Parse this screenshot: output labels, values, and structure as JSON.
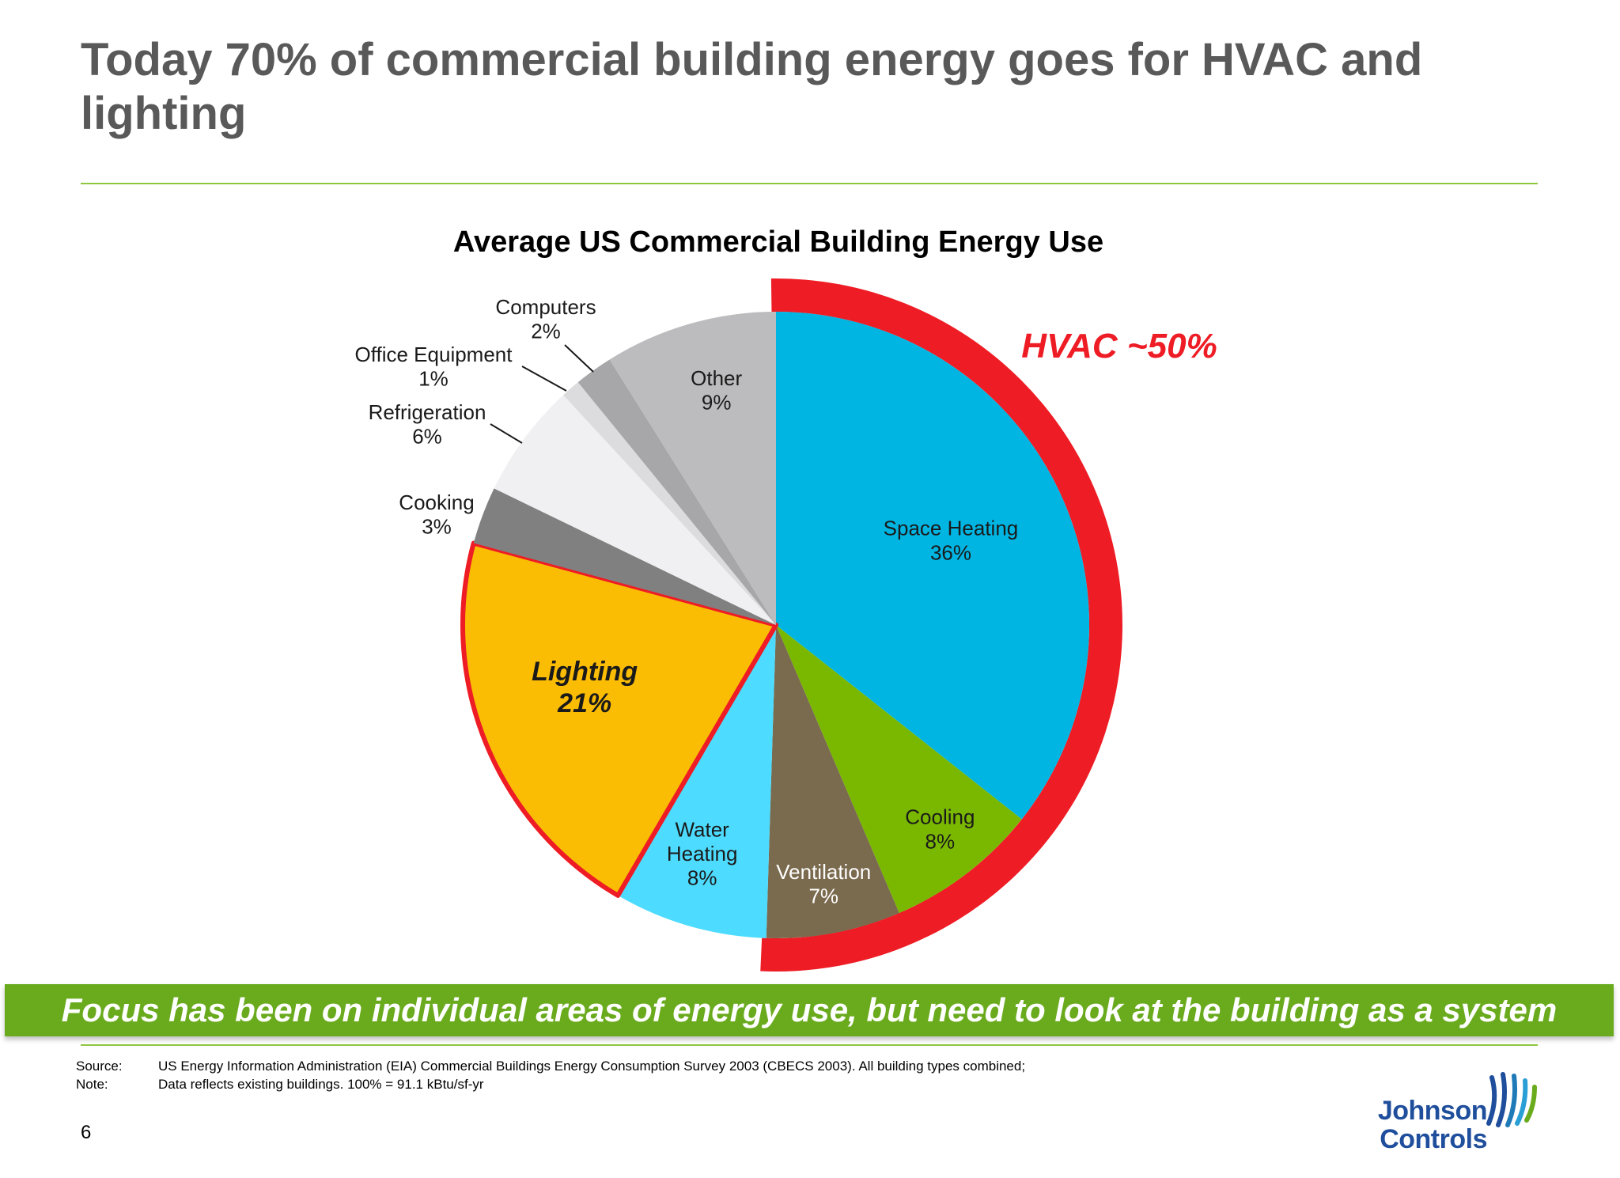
{
  "slide": {
    "title": "Today 70% of commercial building energy goes for HVAC and lighting",
    "banner": "Focus has been on individual areas of energy use, but need to look at the building as a system",
    "page_number": "6",
    "notes": [
      {
        "label": "Source:",
        "text": "US Energy Information Administration (EIA) Commercial Buildings Energy Consumption Survey 2003 (CBECS 2003).  All building types combined;"
      },
      {
        "label": "Note:",
        "text": "Data reflects existing buildings.  100% = 91.1 kBtu/sf-yr"
      }
    ],
    "logo": {
      "line1": "Johnson",
      "line2": "Controls",
      "icon": "johnson-controls-logo-icon"
    },
    "colors": {
      "accent_green": "#8dc63f",
      "banner_green": "#6aab1e",
      "highlight_red": "#ee1c25"
    }
  },
  "chart_data": {
    "type": "pie",
    "title": "Average US Commercial Building Energy Use",
    "unit": "%",
    "slices": [
      {
        "label": "Space Heating",
        "value": 36,
        "value_label": "36%",
        "color": "#00b5e2",
        "group": "HVAC"
      },
      {
        "label": "Cooling",
        "value": 8,
        "value_label": "8%",
        "color": "#7ab800",
        "group": "HVAC"
      },
      {
        "label": "Ventilation",
        "value": 7,
        "value_label": "7%",
        "color": "#7a6a4e",
        "group": "HVAC"
      },
      {
        "label": "Water Heating",
        "value": 8,
        "value_label": "8%",
        "color": "#4ddcff"
      },
      {
        "label": "Lighting",
        "value": 21,
        "value_label": "21%",
        "color": "#fbbc04",
        "highlight": true
      },
      {
        "label": "Cooking",
        "value": 3,
        "value_label": "3%",
        "color": "#808080"
      },
      {
        "label": "Refrigeration",
        "value": 6,
        "value_label": "6%",
        "color": "#f0f0f2"
      },
      {
        "label": "Office Equipment",
        "value": 1,
        "value_label": "1%",
        "color": "#dcdcde"
      },
      {
        "label": "Computers",
        "value": 2,
        "value_label": "2%",
        "color": "#a7a7a9"
      },
      {
        "label": "Other",
        "value": 9,
        "value_label": "9%",
        "color": "#bcbcbe"
      }
    ],
    "annotation": {
      "text": "HVAC ~50%",
      "color": "#ee1c25"
    },
    "start_angle_deg": 0,
    "direction": "clockwise"
  }
}
